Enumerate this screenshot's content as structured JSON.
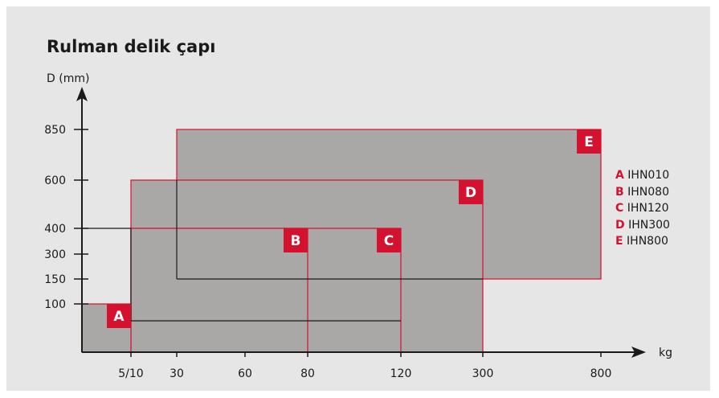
{
  "chart_data": {
    "type": "range-boxes",
    "title": "Rulman delik çapı",
    "ylabel": "D (mm)",
    "xlabel": "kg",
    "x_ticks": [
      "5/10",
      "30",
      "60",
      "80",
      "120",
      "300",
      "800"
    ],
    "y_ticks": [
      "100",
      "150",
      "300",
      "400",
      "600",
      "850"
    ],
    "series": [
      {
        "name": "A",
        "model": "IHN010",
        "x": [
          "",
          "5/10"
        ],
        "y": [
          "",
          "100"
        ]
      },
      {
        "name": "B",
        "model": "IHN080",
        "x": [
          "5/10",
          "80"
        ],
        "y": [
          "",
          "400"
        ]
      },
      {
        "name": "C",
        "model": "IHN120",
        "x": [
          "5/10",
          "120"
        ],
        "y": [
          "",
          "400"
        ]
      },
      {
        "name": "D",
        "model": "IHN300",
        "x": [
          "5/10",
          "300"
        ],
        "y": [
          "",
          "600"
        ]
      },
      {
        "name": "E",
        "model": "IHN800",
        "x": [
          "30",
          "800"
        ],
        "y": [
          "150",
          "850"
        ]
      }
    ]
  },
  "colors": {
    "background": "#e6e6e6",
    "box_fill": "#a9a8a6",
    "box_border": "#d4112f",
    "label_fill": "#d4112f",
    "label_text": "#ffffff",
    "axis": "#1a1a1a"
  }
}
